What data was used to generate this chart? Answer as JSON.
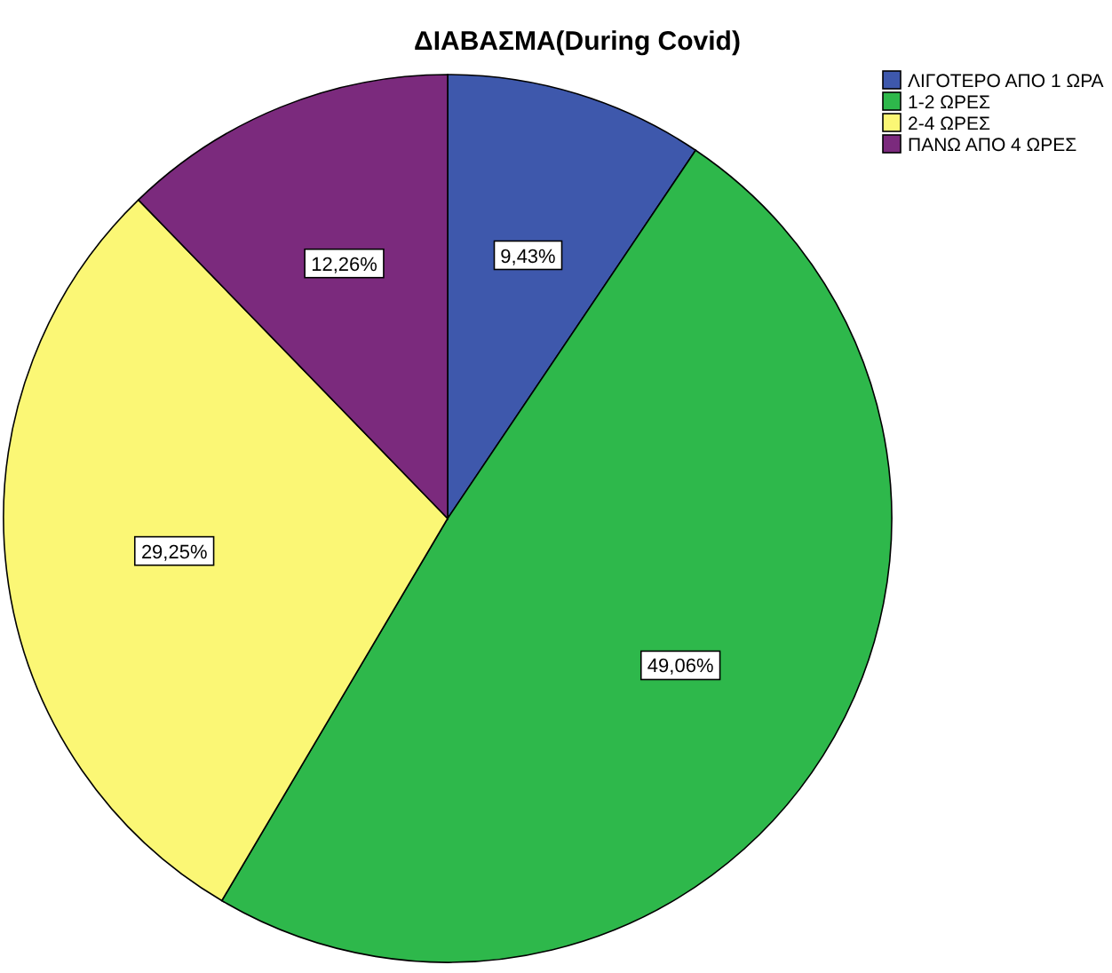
{
  "chart_data": {
    "type": "pie",
    "title": "ΔΙΑΒΑΣΜΑ(During Covid)",
    "categories": [
      "ΛΙΓΟΤΕΡΟ ΑΠΟ 1 ΩΡΑ",
      "1-2 ΩΡΕΣ",
      "2-4 ΩΡΕΣ",
      "ΠΑΝΩ ΑΠΟ 4 ΩΡΕΣ"
    ],
    "values": [
      9.43,
      49.06,
      29.25,
      12.26
    ],
    "colors": [
      "#3e58ac",
      "#2eb84b",
      "#fbf775",
      "#7b2a7d"
    ],
    "value_labels": [
      "9,43%",
      "49,06%",
      "29,25%",
      "12,26%"
    ],
    "legend": "top right"
  }
}
